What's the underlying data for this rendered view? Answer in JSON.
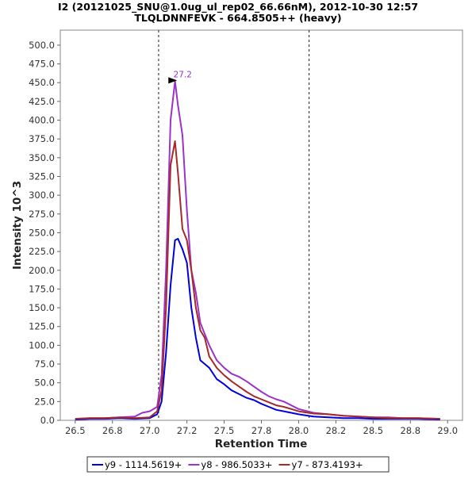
{
  "chart_data": {
    "type": "line",
    "title": "I2 (20121025_SNU@1.0ug_ul_rep02_66.66nM), 2012-10-30 12:57",
    "subtitle": "TLQLDNNFEVK - 664.8505++ (heavy)",
    "xlabel": "Retention Time",
    "ylabel": "Intensity 10^3",
    "xlim": [
      26.4,
      29.1
    ],
    "ylim": [
      0,
      520
    ],
    "x_ticks": [
      26.5,
      26.75,
      27.0,
      27.25,
      27.5,
      27.75,
      28.0,
      28.25,
      28.5,
      28.75,
      29.0
    ],
    "x_tick_labels": [
      "26.5",
      "26.8",
      "27.0",
      "27.2",
      "27.5",
      "27.8",
      "28.0",
      "28.2",
      "28.5",
      "28.8",
      "29.0"
    ],
    "y_ticks": [
      0,
      25,
      50,
      75,
      100,
      125,
      150,
      175,
      200,
      225,
      250,
      275,
      300,
      325,
      350,
      375,
      400,
      425,
      450,
      475,
      500
    ],
    "y_tick_labels": [
      "0.0",
      "25.0",
      "50.0",
      "75.0",
      "100.0",
      "125.0",
      "150.0",
      "175.0",
      "200.0",
      "225.0",
      "250.0",
      "275.0",
      "300.0",
      "325.0",
      "350.0",
      "375.0",
      "400.0",
      "425.0",
      "450.0",
      "475.0",
      "500.0"
    ],
    "grid": false,
    "legend_position": "bottom",
    "vlines": [
      27.06,
      28.07
    ],
    "peak_annotation": {
      "label": "27.2",
      "x": 27.2,
      "y": 452,
      "color": "#9933cc"
    },
    "series": [
      {
        "name": "y9 - 1114.5619+",
        "color": "#0000dd",
        "x": [
          26.5,
          26.6,
          26.7,
          26.8,
          26.9,
          27.0,
          27.05,
          27.08,
          27.11,
          27.14,
          27.17,
          27.19,
          27.22,
          27.25,
          27.28,
          27.31,
          27.34,
          27.37,
          27.4,
          27.45,
          27.5,
          27.55,
          27.6,
          27.65,
          27.7,
          27.75,
          27.8,
          27.85,
          27.9,
          28.0,
          28.1,
          28.2,
          28.3,
          28.4,
          28.5,
          28.6,
          28.7,
          28.8,
          28.95
        ],
        "y": [
          1,
          2,
          2,
          3,
          2,
          3,
          8,
          25,
          90,
          180,
          240,
          242,
          228,
          210,
          150,
          110,
          80,
          75,
          70,
          55,
          48,
          40,
          35,
          30,
          27,
          22,
          18,
          14,
          12,
          8,
          5,
          4,
          3,
          3,
          2,
          2,
          2,
          2,
          1
        ]
      },
      {
        "name": "y8 - 986.5033+",
        "color": "#9933cc",
        "x": [
          26.5,
          26.6,
          26.7,
          26.8,
          26.9,
          26.95,
          27.0,
          27.05,
          27.08,
          27.11,
          27.14,
          27.17,
          27.19,
          27.22,
          27.25,
          27.28,
          27.31,
          27.34,
          27.37,
          27.4,
          27.45,
          27.5,
          27.55,
          27.6,
          27.65,
          27.7,
          27.75,
          27.8,
          27.85,
          27.9,
          28.0,
          28.1,
          28.2,
          28.3,
          28.4,
          28.5,
          28.6,
          28.7,
          28.8,
          28.95
        ],
        "y": [
          2,
          3,
          3,
          4,
          5,
          10,
          12,
          18,
          60,
          200,
          400,
          452,
          420,
          380,
          280,
          200,
          170,
          130,
          115,
          100,
          80,
          70,
          62,
          58,
          52,
          45,
          38,
          32,
          28,
          25,
          15,
          10,
          8,
          6,
          5,
          4,
          4,
          3,
          3,
          2
        ]
      },
      {
        "name": "y7 - 873.4193+",
        "color": "#a52a2a",
        "x": [
          26.5,
          26.6,
          26.7,
          26.8,
          26.9,
          27.0,
          27.05,
          27.08,
          27.11,
          27.14,
          27.17,
          27.19,
          27.22,
          27.25,
          27.28,
          27.31,
          27.34,
          27.37,
          27.4,
          27.45,
          27.5,
          27.55,
          27.6,
          27.65,
          27.7,
          27.75,
          27.8,
          27.85,
          27.9,
          28.0,
          28.1,
          28.2,
          28.3,
          28.4,
          28.5,
          28.6,
          28.7,
          28.8,
          28.95
        ],
        "y": [
          2,
          3,
          3,
          4,
          3,
          4,
          12,
          40,
          150,
          340,
          372,
          330,
          255,
          240,
          200,
          150,
          120,
          110,
          85,
          70,
          60,
          52,
          45,
          38,
          32,
          28,
          24,
          20,
          18,
          12,
          9,
          8,
          6,
          5,
          4,
          3,
          3,
          3,
          2
        ]
      }
    ]
  }
}
